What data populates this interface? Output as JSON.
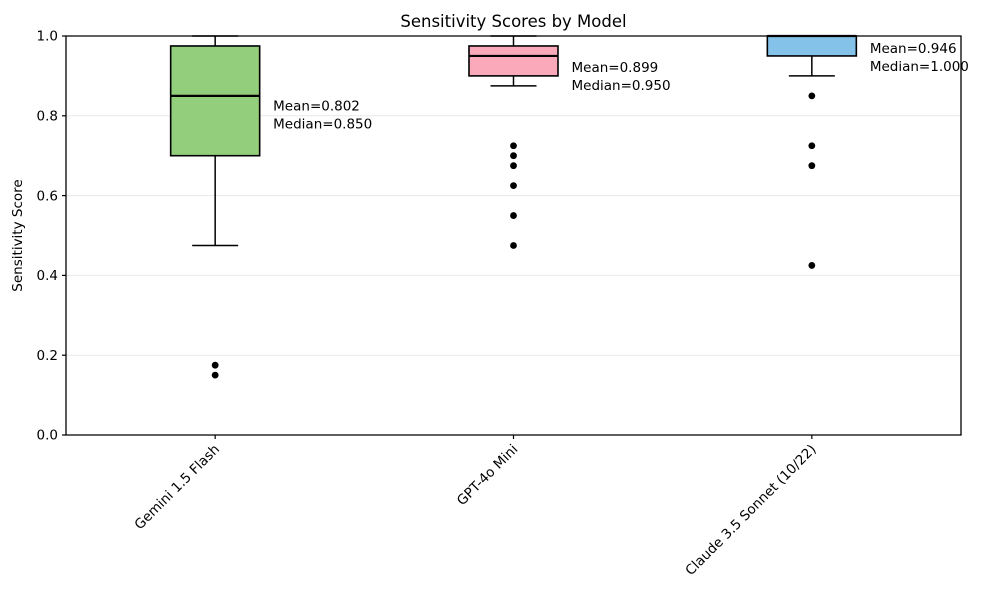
{
  "chart_data": {
    "type": "boxplot",
    "title": "Sensitivity Scores by Model",
    "xlabel": "",
    "ylabel": "Sensitivity Score",
    "ylim": [
      0.0,
      1.0
    ],
    "yticks": [
      0.0,
      0.2,
      0.4,
      0.6,
      0.8,
      1.0
    ],
    "grid": "horizontal",
    "grid_color": "#e9e9e9",
    "background_color": "#ffffff",
    "edge_color": "#000000",
    "outlier_color": "#000000",
    "categories": [
      "Gemini 1.5 Flash",
      "GPT-4o Mini",
      "Claude 3.5 Sonnet (10/22)"
    ],
    "series": [
      {
        "name": "Gemini 1.5 Flash",
        "box_color": "#92ce7c",
        "whisker_low": 0.475,
        "q1": 0.7,
        "median": 0.85,
        "q3": 0.975,
        "whisker_high": 1.0,
        "outliers": [
          0.175,
          0.15
        ],
        "mean": 0.802,
        "annotation_lines": [
          "Mean=0.802",
          "Median=0.850"
        ]
      },
      {
        "name": "GPT-4o Mini",
        "box_color": "#f9a9ba",
        "whisker_low": 0.875,
        "q1": 0.9,
        "median": 0.95,
        "q3": 0.975,
        "whisker_high": 1.0,
        "outliers": [
          0.725,
          0.7,
          0.675,
          0.625,
          0.55,
          0.475
        ],
        "mean": 0.899,
        "annotation_lines": [
          "Mean=0.899",
          "Median=0.950"
        ]
      },
      {
        "name": "Claude 3.5 Sonnet (10/22)",
        "box_color": "#85c2e9",
        "whisker_low": 0.9,
        "q1": 0.95,
        "median": 1.0,
        "q3": 1.0,
        "whisker_high": 1.0,
        "outliers": [
          0.85,
          0.725,
          0.675,
          0.425
        ],
        "mean": 0.946,
        "annotation_lines": [
          "Mean=0.946",
          "Median=1.000"
        ]
      }
    ]
  }
}
